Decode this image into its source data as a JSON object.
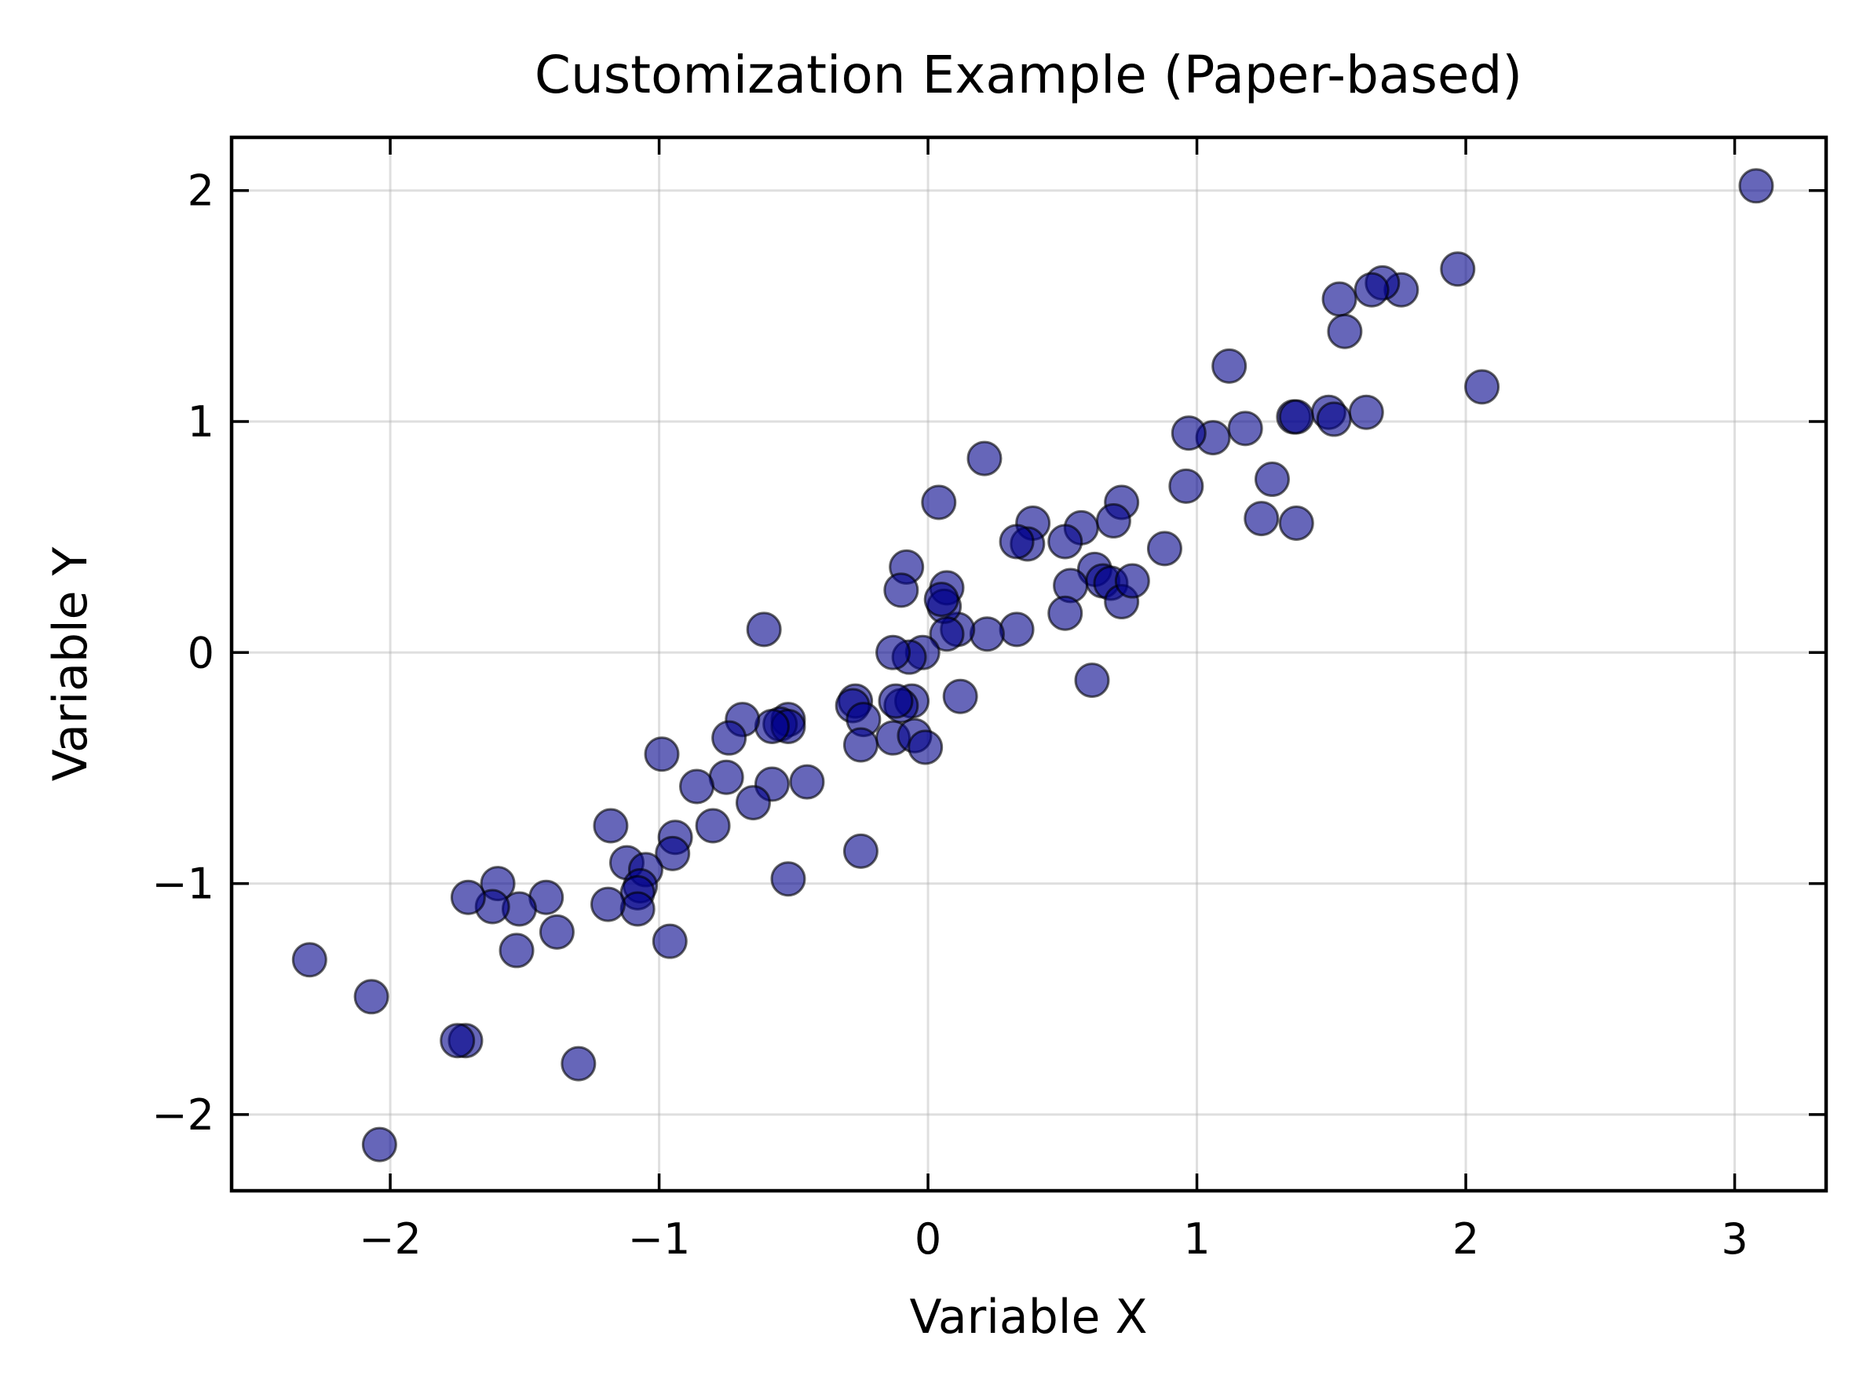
{
  "chart_data": {
    "type": "scatter",
    "title": "Customization Example (Paper-based)",
    "xlabel": "Variable X",
    "ylabel": "Variable Y",
    "xlim": [
      -2.59,
      3.34
    ],
    "ylim": [
      -2.33,
      2.23
    ],
    "xticks": [
      -2,
      -1,
      0,
      1,
      2,
      3
    ],
    "yticks": [
      -2,
      -1,
      0,
      1,
      2
    ],
    "xtick_labels": [
      "−2",
      "−1",
      "0",
      "1",
      "2",
      "3"
    ],
    "ytick_labels": [
      "−2",
      "−1",
      "0",
      "1",
      "2"
    ],
    "grid": true,
    "ticks_direction": "in",
    "ticks_on_all_sides": true,
    "marker_color": "#00008b",
    "marker_edge_color": "#000000",
    "marker_alpha": 0.6,
    "points": [
      [
        3.08,
        2.02
      ],
      [
        1.97,
        1.66
      ],
      [
        2.06,
        1.15
      ],
      [
        1.76,
        1.57
      ],
      [
        1.69,
        1.6
      ],
      [
        1.65,
        1.57
      ],
      [
        1.53,
        1.53
      ],
      [
        1.55,
        1.39
      ],
      [
        1.12,
        1.24
      ],
      [
        1.63,
        1.04
      ],
      [
        1.49,
        1.04
      ],
      [
        1.51,
        1.01
      ],
      [
        1.36,
        1.02
      ],
      [
        1.37,
        1.02
      ],
      [
        1.18,
        0.97
      ],
      [
        1.06,
        0.93
      ],
      [
        0.97,
        0.95
      ],
      [
        1.28,
        0.75
      ],
      [
        1.24,
        0.58
      ],
      [
        1.37,
        0.56
      ],
      [
        0.96,
        0.72
      ],
      [
        0.88,
        0.45
      ],
      [
        0.72,
        0.65
      ],
      [
        0.69,
        0.57
      ],
      [
        0.57,
        0.54
      ],
      [
        0.51,
        0.48
      ],
      [
        0.39,
        0.56
      ],
      [
        0.37,
        0.47
      ],
      [
        0.33,
        0.48
      ],
      [
        0.21,
        0.84
      ],
      [
        0.04,
        0.65
      ],
      [
        0.62,
        0.36
      ],
      [
        0.65,
        0.31
      ],
      [
        0.68,
        0.3
      ],
      [
        0.72,
        0.22
      ],
      [
        0.76,
        0.31
      ],
      [
        0.53,
        0.29
      ],
      [
        0.51,
        0.17
      ],
      [
        0.33,
        0.1
      ],
      [
        0.22,
        0.08
      ],
      [
        0.11,
        0.1
      ],
      [
        0.07,
        0.28
      ],
      [
        0.06,
        0.2
      ],
      [
        0.07,
        0.08
      ],
      [
        0.05,
        0.23
      ],
      [
        -0.08,
        0.37
      ],
      [
        -0.1,
        0.27
      ],
      [
        -0.02,
        0.0
      ],
      [
        -0.07,
        -0.02
      ],
      [
        -0.13,
        0.0
      ],
      [
        0.61,
        -0.12
      ],
      [
        0.12,
        -0.19
      ],
      [
        -0.06,
        -0.21
      ],
      [
        -0.1,
        -0.23
      ],
      [
        -0.12,
        -0.21
      ],
      [
        -0.27,
        -0.21
      ],
      [
        -0.28,
        -0.23
      ],
      [
        -0.24,
        -0.29
      ],
      [
        -0.13,
        -0.37
      ],
      [
        -0.05,
        -0.36
      ],
      [
        -0.01,
        -0.41
      ],
      [
        -0.25,
        -0.4
      ],
      [
        -0.61,
        0.1
      ],
      [
        -0.52,
        -0.29
      ],
      [
        -0.55,
        -0.31
      ],
      [
        -0.52,
        -0.32
      ],
      [
        -0.58,
        -0.32
      ],
      [
        -0.69,
        -0.29
      ],
      [
        -0.74,
        -0.37
      ],
      [
        -0.99,
        -0.44
      ],
      [
        -0.58,
        -0.57
      ],
      [
        -0.45,
        -0.56
      ],
      [
        -0.75,
        -0.54
      ],
      [
        -0.86,
        -0.58
      ],
      [
        -0.65,
        -0.65
      ],
      [
        -0.8,
        -0.75
      ],
      [
        -0.94,
        -0.8
      ],
      [
        -0.95,
        -0.87
      ],
      [
        -1.18,
        -0.75
      ],
      [
        -1.12,
        -0.91
      ],
      [
        -1.05,
        -0.94
      ],
      [
        -1.07,
        -1.01
      ],
      [
        -1.08,
        -1.04
      ],
      [
        -1.08,
        -1.11
      ],
      [
        -1.19,
        -1.09
      ],
      [
        -0.52,
        -0.98
      ],
      [
        -0.25,
        -0.86
      ],
      [
        -0.96,
        -1.25
      ],
      [
        -1.42,
        -1.06
      ],
      [
        -1.38,
        -1.21
      ],
      [
        -1.52,
        -1.11
      ],
      [
        -1.6,
        -1.0
      ],
      [
        -1.62,
        -1.1
      ],
      [
        -1.71,
        -1.06
      ],
      [
        -1.53,
        -1.29
      ],
      [
        -1.3,
        -1.78
      ],
      [
        -1.72,
        -1.68
      ],
      [
        -1.75,
        -1.68
      ],
      [
        -2.3,
        -1.33
      ],
      [
        -2.07,
        -1.49
      ],
      [
        -2.04,
        -2.13
      ]
    ]
  }
}
